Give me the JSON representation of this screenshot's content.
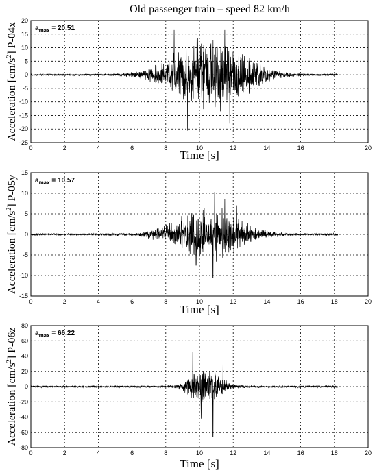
{
  "title": "Old passenger train – speed 82 km/h",
  "chart_data": [
    {
      "type": "line",
      "channel": "P-04x",
      "ylabel_main": "Acceleration [cm/s",
      "ylabel_sup": "2",
      "ylabel_tail": "]  P-04x",
      "xlabel": "Time [s]",
      "amax_label": "a",
      "amax_sub": "max",
      "amax_value": "= 20.51",
      "xlim": [
        0,
        20
      ],
      "ylim": [
        -25,
        20
      ],
      "xticks": [
        0,
        2,
        4,
        6,
        8,
        10,
        12,
        14,
        16,
        20
      ],
      "xticks_all": [
        0,
        2,
        4,
        6,
        8,
        10,
        12,
        14,
        16,
        18,
        20
      ],
      "yticks": [
        20,
        15,
        10,
        5,
        0,
        -5,
        -10,
        -15,
        -20,
        -25
      ],
      "grid": true,
      "signal": {
        "t_end": 18.2,
        "center": 10.6,
        "width": 2.6,
        "peak": 20.51,
        "noise": 0.4,
        "seed": 11,
        "spikes": [
          [
            9.3,
            -20.5
          ],
          [
            8.5,
            16.5
          ],
          [
            11.5,
            16.5
          ],
          [
            9.9,
            13.5
          ],
          [
            11.8,
            -18
          ]
        ]
      }
    },
    {
      "type": "line",
      "channel": "P-05y",
      "ylabel_main": "Acceleration [cm/s",
      "ylabel_sup": "2",
      "ylabel_tail": "]  P-05y",
      "xlabel": "Time [s]",
      "amax_label": "a",
      "amax_sub": "max",
      "amax_value": "= 10.57",
      "xlim": [
        0,
        20
      ],
      "ylim": [
        -15,
        15
      ],
      "xticks": [
        0,
        2,
        4,
        6,
        8,
        10,
        12,
        14,
        16,
        18,
        20
      ],
      "yticks": [
        15,
        10,
        5,
        0,
        -5,
        -10,
        -15
      ],
      "grid": true,
      "signal": {
        "t_end": 18.2,
        "center": 10.5,
        "width": 2.4,
        "peak": 9.5,
        "noise": 0.3,
        "seed": 23,
        "spikes": [
          [
            10.9,
            10.3
          ],
          [
            10.8,
            -10.5
          ],
          [
            11.5,
            8.5
          ],
          [
            9.8,
            -7.5
          ],
          [
            12.2,
            7
          ]
        ]
      }
    },
    {
      "type": "line",
      "channel": "P-06z",
      "ylabel_main": "Acceleration [cm/s",
      "ylabel_sup": "2",
      "ylabel_tail": "]  P-06z",
      "xlabel": "Time [s]",
      "amax_label": "a",
      "amax_sub": "max",
      "amax_value": "= 66.22",
      "xlim": [
        0,
        20
      ],
      "ylim": [
        -80,
        80
      ],
      "xticks": [
        0,
        2,
        4,
        6,
        8,
        10,
        12,
        14,
        16,
        18,
        20
      ],
      "yticks": [
        80,
        60,
        40,
        20,
        0,
        -20,
        -40,
        -60,
        -80
      ],
      "grid": true,
      "signal": {
        "t_end": 18.2,
        "center": 10.4,
        "width": 1.1,
        "peak": 40,
        "noise": 1.5,
        "seed": 37,
        "spikes": [
          [
            10.8,
            60
          ],
          [
            10.8,
            -66
          ],
          [
            9.6,
            45
          ],
          [
            10.1,
            -42
          ],
          [
            11.4,
            33
          ]
        ]
      }
    }
  ]
}
